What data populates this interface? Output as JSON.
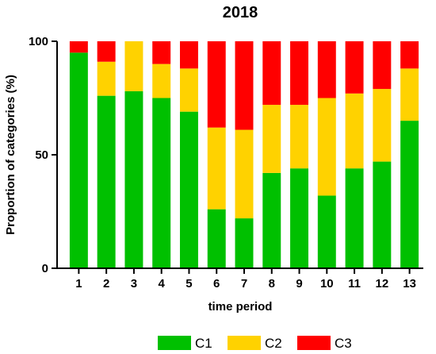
{
  "chart_data": {
    "type": "bar",
    "stacked": true,
    "title": "2018",
    "xlabel": "time period",
    "ylabel": "Proportion of categories (%)",
    "ylim": [
      0,
      100
    ],
    "yticks": [
      "0",
      "50",
      "100"
    ],
    "grid": false,
    "legend_position": "bottom",
    "categories": [
      "1",
      "2",
      "3",
      "4",
      "5",
      "6",
      "7",
      "8",
      "9",
      "10",
      "11",
      "12",
      "13"
    ],
    "series": [
      {
        "name": "C1",
        "color": "#00c000",
        "values": [
          95,
          76,
          78,
          75,
          69,
          26,
          22,
          42,
          44,
          32,
          44,
          47,
          65
        ]
      },
      {
        "name": "C2",
        "color": "#ffd200",
        "values": [
          0,
          15,
          22,
          15,
          19,
          36,
          39,
          30,
          28,
          43,
          33,
          32,
          23
        ]
      },
      {
        "name": "C3",
        "color": "#ff0000",
        "values": [
          5,
          9,
          0,
          10,
          12,
          38,
          39,
          28,
          28,
          25,
          23,
          21,
          12
        ]
      }
    ]
  }
}
